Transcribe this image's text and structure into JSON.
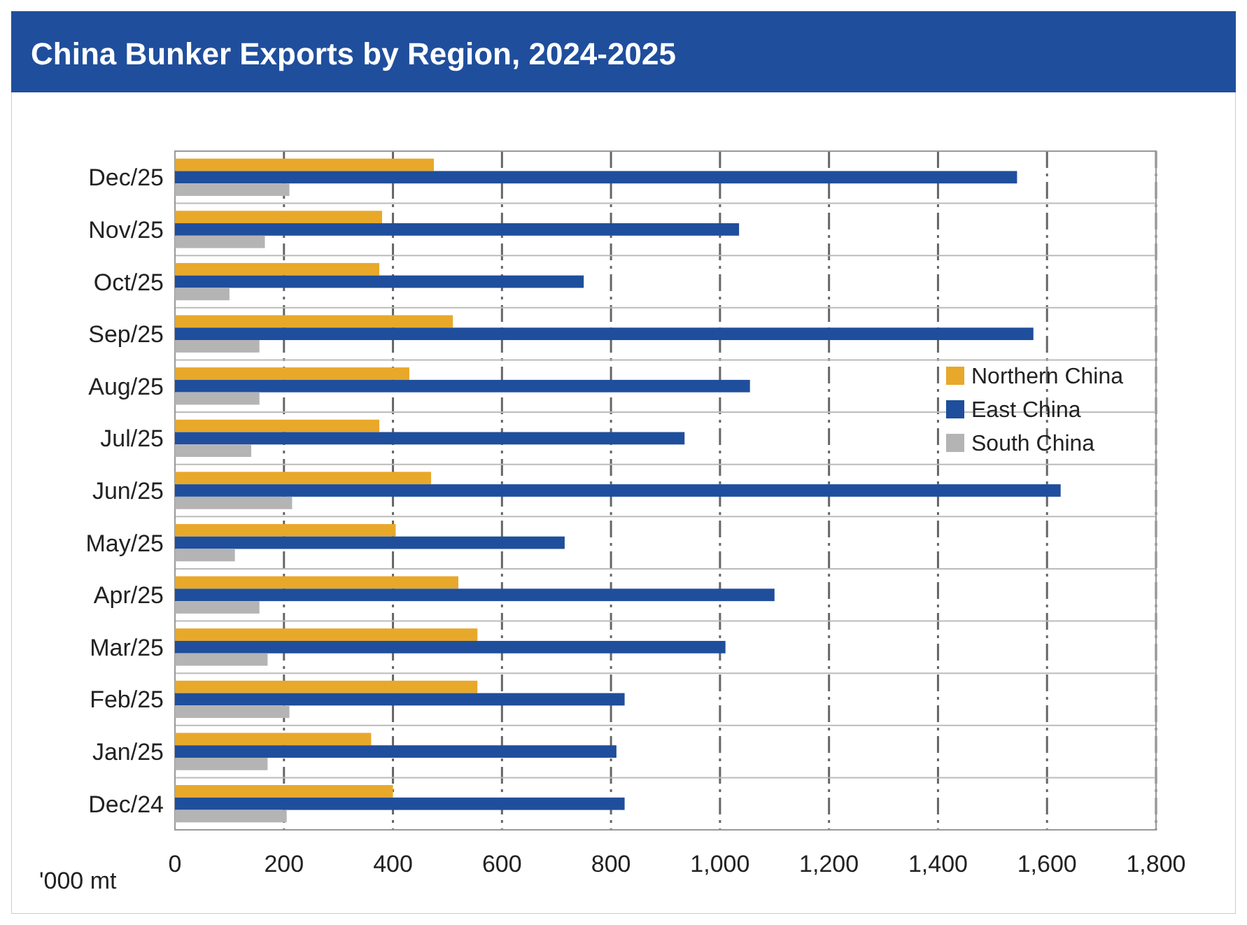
{
  "chart_data": {
    "type": "bar",
    "orientation": "horizontal",
    "title": "China Bunker Exports by Region, 2024-2025",
    "xlabel": "'000 mt",
    "categories": [
      "Dec/25",
      "Nov/25",
      "Oct/25",
      "Sep/25",
      "Aug/25",
      "Jul/25",
      "Jun/25",
      "May/25",
      "Apr/25",
      "Mar/25",
      "Feb/25",
      "Jan/25",
      "Dec/24"
    ],
    "series": [
      {
        "name": "Northern China",
        "color": "#e8a82a",
        "values": [
          475,
          380,
          375,
          510,
          430,
          375,
          470,
          405,
          520,
          555,
          555,
          360,
          400
        ]
      },
      {
        "name": "East China",
        "color": "#1f4e9c",
        "values": [
          1545,
          1035,
          750,
          1575,
          1055,
          935,
          1625,
          715,
          1100,
          1010,
          825,
          810,
          825
        ]
      },
      {
        "name": "South China",
        "color": "#b4b4b4",
        "values": [
          210,
          165,
          100,
          155,
          155,
          140,
          215,
          110,
          155,
          170,
          210,
          170,
          205
        ]
      }
    ],
    "xlim": [
      0,
      1800
    ],
    "xticks": [
      0,
      {
        "value": 200,
        "label": "200"
      },
      {
        "value": 400,
        "label": "400"
      },
      {
        "value": 600,
        "label": "600"
      },
      {
        "value": 800,
        "label": "800"
      },
      {
        "value": 1000,
        "label": "1,000"
      },
      {
        "value": 1200,
        "label": "1,200"
      },
      {
        "value": 1400,
        "label": "1,400"
      },
      {
        "value": 1600,
        "label": "1,600"
      },
      {
        "value": 1800,
        "label": "1,800"
      }
    ],
    "grid": "x",
    "legend": "right"
  }
}
